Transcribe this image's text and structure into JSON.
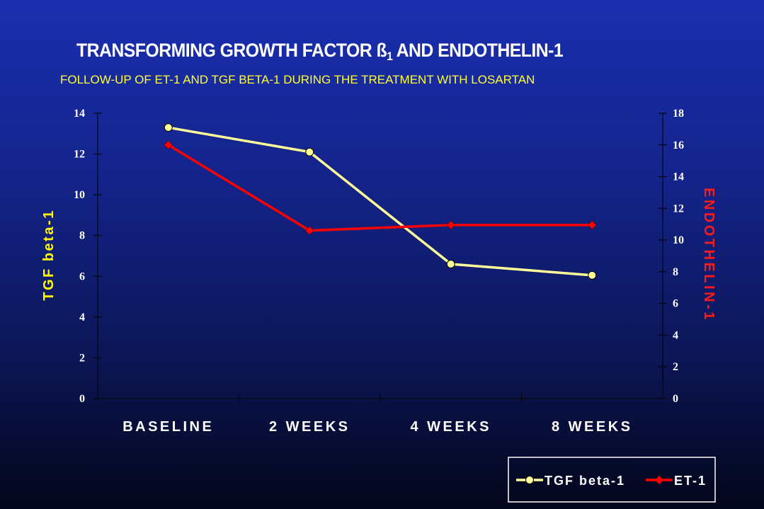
{
  "slide": {
    "title_main": "TRANSFORMING GROWTH FACTOR ß",
    "title_sub": "1",
    "title_tail": " AND ENDOTHELIN-1"
  },
  "chart_data": {
    "type": "line",
    "title": "TRANSFORMING GROWTH FACTOR ß1 AND ENDOTHELIN-1",
    "subtitle": "FOLLOW-UP OF ET-1 AND TGF BETA-1 DURING  THE TREATMENT WITH LOSARTAN",
    "categories": [
      "BASELINE",
      "2 WEEKS",
      "4 WEEKS",
      "8 WEEKS"
    ],
    "ylabel": "TGF beta-1",
    "y2label": "ENDOTHELIN-1",
    "ylim": [
      0,
      14
    ],
    "y2lim": [
      0,
      18
    ],
    "yticks": [
      0,
      2,
      4,
      6,
      8,
      10,
      12,
      14
    ],
    "y2ticks": [
      0,
      2,
      4,
      6,
      8,
      10,
      12,
      14,
      16,
      18
    ],
    "grid": false,
    "legend_position": "bottom-right",
    "series": [
      {
        "name": "TGF beta-1",
        "axis": "left",
        "color": "#ffff99",
        "marker": "circle",
        "values": [
          13.3,
          12.1,
          6.6,
          6.05
        ]
      },
      {
        "name": "ET-1",
        "axis": "right",
        "color": "#ff0000",
        "marker": "diamond",
        "values": [
          16.0,
          10.6,
          10.95,
          10.95
        ]
      }
    ]
  }
}
